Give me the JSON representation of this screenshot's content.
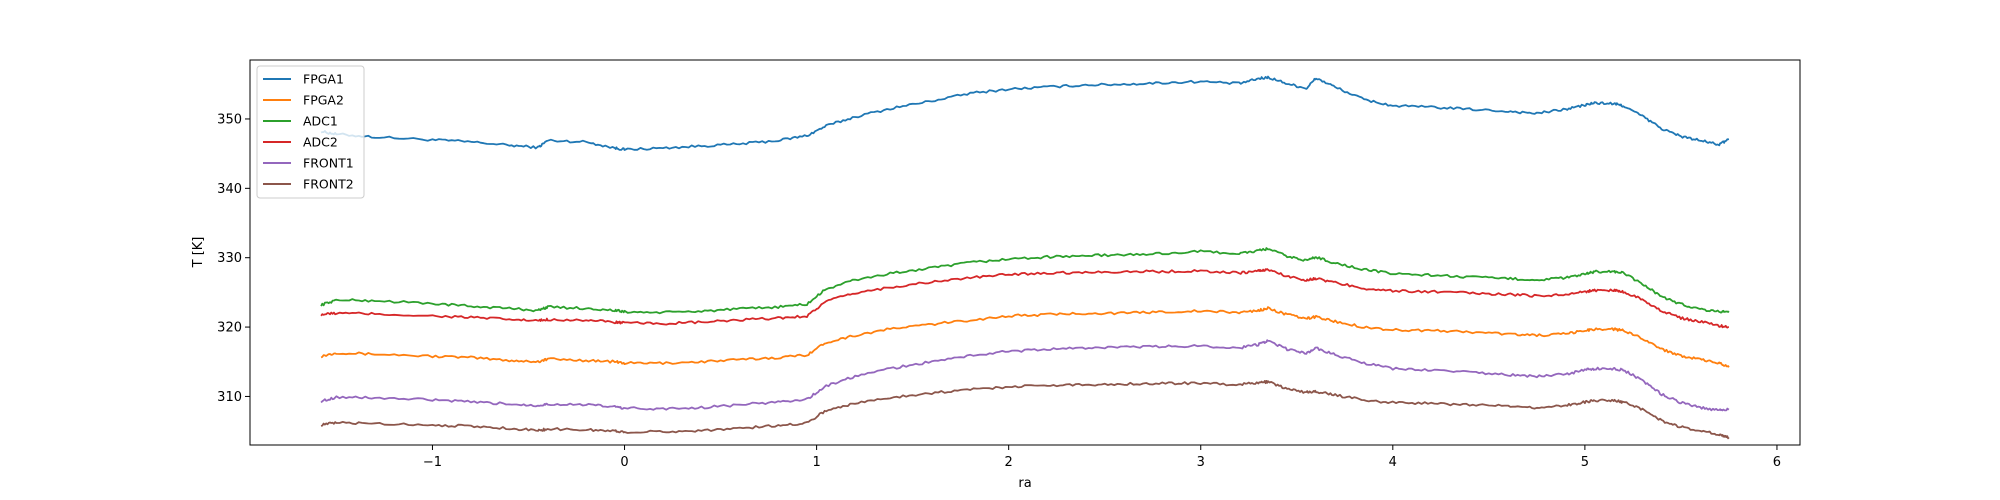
{
  "chart_data": {
    "type": "line",
    "title": "",
    "xlabel": "ra",
    "ylabel": "T [K]",
    "xlim": [
      -1.95,
      6.12
    ],
    "ylim": [
      303.0,
      358.5
    ],
    "xticks": [
      -1,
      0,
      1,
      2,
      3,
      4,
      5,
      6
    ],
    "xtick_labels": [
      "−1",
      "0",
      "1",
      "2",
      "3",
      "4",
      "5",
      "6"
    ],
    "yticks": [
      310,
      320,
      330,
      340,
      350
    ],
    "ytick_labels": [
      "310",
      "320",
      "330",
      "340",
      "350"
    ],
    "grid": false,
    "legend_position": "top-left",
    "x": [
      -1.58,
      -1.5,
      -1.3,
      -1.0,
      -0.8,
      -0.6,
      -0.45,
      -0.4,
      -0.2,
      -0.05,
      0.0,
      0.2,
      0.4,
      0.6,
      0.8,
      0.95,
      1.05,
      1.2,
      1.4,
      1.6,
      1.8,
      2.0,
      2.2,
      2.4,
      2.6,
      2.8,
      3.0,
      3.2,
      3.3,
      3.35,
      3.45,
      3.55,
      3.6,
      3.7,
      3.85,
      4.0,
      4.2,
      4.4,
      4.6,
      4.75,
      4.9,
      5.0,
      5.05,
      5.15,
      5.2,
      5.3,
      5.4,
      5.5,
      5.6,
      5.7,
      5.75
    ],
    "series": [
      {
        "name": "FPGA1",
        "color": "#1f77b4",
        "values": [
          348.2,
          347.8,
          347.4,
          347.0,
          346.7,
          346.2,
          345.9,
          346.9,
          346.7,
          345.8,
          345.6,
          345.8,
          346.1,
          346.4,
          346.9,
          347.6,
          349.0,
          350.3,
          351.6,
          352.6,
          353.7,
          354.3,
          354.6,
          354.9,
          355.0,
          355.2,
          355.4,
          355.1,
          355.8,
          356.0,
          355.1,
          354.4,
          355.9,
          354.6,
          352.8,
          351.9,
          351.7,
          351.4,
          351.1,
          350.8,
          351.4,
          352.0,
          352.3,
          352.2,
          351.9,
          350.4,
          348.6,
          347.5,
          346.9,
          346.3,
          347.1
        ]
      },
      {
        "name": "FPGA2",
        "color": "#ff7f0e",
        "values": [
          315.8,
          316.3,
          316.1,
          315.8,
          315.6,
          315.2,
          315.0,
          315.4,
          315.2,
          315.0,
          314.8,
          314.8,
          315.0,
          315.3,
          315.6,
          316.0,
          317.8,
          318.8,
          319.8,
          320.4,
          321.0,
          321.6,
          321.8,
          322.0,
          322.0,
          322.2,
          322.3,
          322.1,
          322.4,
          322.7,
          321.8,
          321.2,
          321.5,
          320.8,
          320.0,
          319.6,
          319.5,
          319.3,
          319.0,
          318.8,
          319.0,
          319.5,
          319.7,
          319.7,
          319.5,
          318.4,
          316.8,
          315.9,
          315.3,
          314.8,
          314.2
        ]
      },
      {
        "name": "ADC1",
        "color": "#2ca02c",
        "values": [
          323.2,
          323.9,
          323.8,
          323.4,
          323.0,
          322.7,
          322.4,
          322.9,
          322.7,
          322.4,
          322.2,
          322.1,
          322.3,
          322.6,
          322.9,
          323.3,
          325.5,
          326.8,
          327.8,
          328.5,
          329.3,
          329.8,
          330.1,
          330.3,
          330.4,
          330.6,
          330.9,
          330.6,
          331.0,
          331.3,
          330.2,
          329.6,
          330.1,
          329.2,
          328.3,
          327.7,
          327.5,
          327.2,
          327.0,
          326.8,
          327.1,
          327.6,
          328.0,
          328.0,
          327.8,
          326.2,
          324.4,
          323.3,
          322.6,
          322.2,
          322.3
        ]
      },
      {
        "name": "ADC2",
        "color": "#d62728",
        "values": [
          321.8,
          322.0,
          321.9,
          321.6,
          321.4,
          321.1,
          320.9,
          321.1,
          321.0,
          320.7,
          320.6,
          320.5,
          320.7,
          321.0,
          321.3,
          321.6,
          323.7,
          324.9,
          325.8,
          326.5,
          327.1,
          327.6,
          327.8,
          327.9,
          328.0,
          328.0,
          328.1,
          327.8,
          328.1,
          328.3,
          327.3,
          326.8,
          327.0,
          326.4,
          325.6,
          325.2,
          325.1,
          324.9,
          324.7,
          324.5,
          324.7,
          325.1,
          325.3,
          325.3,
          325.1,
          324.0,
          322.3,
          321.3,
          320.8,
          320.2,
          320.0
        ]
      },
      {
        "name": "FRONT1",
        "color": "#9467bd",
        "values": [
          309.3,
          309.9,
          309.8,
          309.5,
          309.2,
          308.9,
          308.7,
          308.9,
          308.8,
          308.5,
          308.3,
          308.2,
          308.4,
          308.8,
          309.2,
          309.6,
          311.5,
          312.9,
          314.1,
          315.0,
          315.9,
          316.5,
          316.8,
          317.0,
          317.1,
          317.2,
          317.3,
          317.0,
          317.5,
          318.0,
          316.8,
          316.2,
          317.0,
          316.0,
          314.8,
          314.0,
          313.8,
          313.5,
          313.1,
          312.9,
          313.2,
          313.8,
          314.0,
          314.0,
          313.8,
          312.3,
          310.3,
          309.1,
          308.4,
          308.0,
          308.1
        ]
      },
      {
        "name": "FRONT2",
        "color": "#8c564b",
        "values": [
          305.9,
          306.2,
          306.1,
          305.9,
          305.7,
          305.4,
          305.1,
          305.3,
          305.2,
          305.0,
          304.9,
          304.9,
          305.1,
          305.4,
          305.8,
          306.2,
          308.0,
          309.0,
          309.9,
          310.5,
          311.0,
          311.4,
          311.6,
          311.7,
          311.8,
          311.9,
          311.9,
          311.7,
          312.0,
          312.1,
          311.1,
          310.6,
          310.7,
          310.2,
          309.5,
          309.1,
          309.0,
          308.8,
          308.6,
          308.4,
          308.7,
          309.2,
          309.4,
          309.4,
          309.2,
          308.1,
          306.5,
          305.6,
          305.1,
          304.5,
          304.1
        ]
      }
    ]
  }
}
